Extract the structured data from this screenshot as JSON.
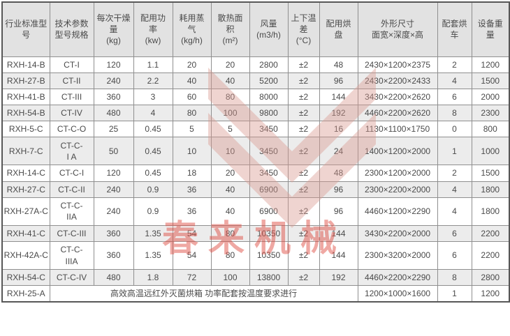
{
  "watermark": {
    "text": "春来机械",
    "text_color": "#e0544a",
    "chevron_color": "#d99890"
  },
  "chart_data": {
    "type": "table",
    "title": "",
    "columns": [
      "行业标准型\n号",
      "技术参数\n型号规格",
      "每次干燥\n量\n(kg)",
      "配用功\n率\n(kw)",
      "耗用蒸\n气\n(kg/h)",
      "散热面\n积\n(m²)",
      "风量\n(m3/h)",
      "上下温\n差\n(°C)",
      "配用烘\n盘",
      "外形尺寸\n面宽×深度×高",
      "配套烘\n车",
      "设备重\n量"
    ],
    "rows": [
      [
        "RXH-14-B",
        "CT-I",
        "120",
        "1.1",
        "20",
        "20",
        "2800",
        "±2",
        "48",
        "2430×1200×2375",
        "2",
        "1200"
      ],
      [
        "RXH-27-B",
        "CT-II",
        "240",
        "2.2",
        "40",
        "40",
        "5200",
        "±2",
        "96",
        "2430×2200×2433",
        "4",
        "1500"
      ],
      [
        "RXH-41-B",
        "CT-III",
        "360",
        "3",
        "60",
        "80",
        "8000",
        "±2",
        "144",
        "3430×2200×2620",
        "6",
        "2000"
      ],
      [
        "RXH-54-B",
        "CT-IV",
        "480",
        "4",
        "80",
        "100",
        "9800",
        "±2",
        "192",
        "4460×2200×2620",
        "8",
        "2300"
      ],
      [
        "RXH-5-C",
        "CT-C-O",
        "25",
        "0.45",
        "5",
        "5",
        "3450",
        "±2",
        "16",
        "1130×1100×1750",
        "0",
        "800"
      ],
      [
        "RXH-7-C",
        "CT-C-\nI A",
        "50",
        "0.45",
        "10",
        "10",
        "3450",
        "±2",
        "24",
        "1400×1200×2000",
        "1",
        "1000"
      ],
      [
        "RXH-14-C",
        "CT-C-I",
        "120",
        "0.45",
        "18",
        "20",
        "3450",
        "±2",
        "48",
        "2300×1200×2000",
        "2",
        "1500"
      ],
      [
        "RXH-27-C",
        "CT-C-II",
        "240",
        "0.9",
        "36",
        "40",
        "6900",
        "±2",
        "96",
        "2300×2200×2000",
        "4",
        "1800"
      ],
      [
        "RXH-27A-C",
        "CT-C-\nIIA",
        "240",
        "0.9",
        "36",
        "40",
        "6900",
        "±2",
        "96",
        "4460×1200×2290",
        "4",
        "1800"
      ],
      [
        "RXH-41-C",
        "CT-C-III",
        "360",
        "1.35",
        "54",
        "80",
        "10350",
        "±2",
        "144",
        "3430×2200×2000",
        "6",
        "2200"
      ],
      [
        "RXH-42A-C",
        "CT-C-\nIIIA",
        "360",
        "1.35",
        "54",
        "80",
        "10350",
        "±2",
        "144",
        "2300×3200×2000",
        "6",
        "2200"
      ],
      [
        "RXH-54-C",
        "CT-C-IV",
        "480",
        "1.8",
        "72",
        "100",
        "13800",
        "±2",
        "192",
        "4460×2200×2290",
        "8",
        "2800"
      ]
    ],
    "merged_row": {
      "model": "RXH-25-A",
      "note": "高效高温远红外灭菌烘箱 功率配套按温度要求进行",
      "dimensions": "1200×1000×1600",
      "carts": "1",
      "weight": "1200"
    },
    "layout": {
      "striped": true,
      "legend_position": "none",
      "grid": true,
      "header_bg": "#e2e2e2",
      "stripe_bg": "#ececec",
      "border_color": "#8f8f8f",
      "text_color": "#4a4a4a"
    }
  }
}
